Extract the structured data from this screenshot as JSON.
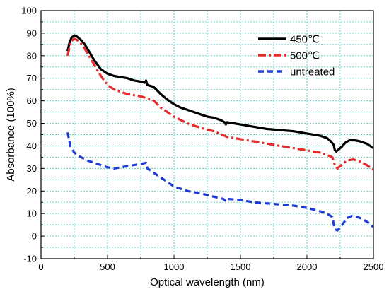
{
  "chart_data": {
    "type": "line",
    "title": "",
    "xlabel": "Optical wavelength (nm)",
    "ylabel": "Absorbance (100%)",
    "xlim": [
      0,
      2500
    ],
    "ylim": [
      -10,
      100
    ],
    "x_ticks": [
      0,
      500,
      1000,
      1500,
      2000,
      2500
    ],
    "y_ticks": [
      -10,
      0,
      10,
      20,
      30,
      40,
      50,
      60,
      70,
      80,
      90,
      100
    ],
    "x_minor_step": 250,
    "y_minor_step": 5,
    "grid": true,
    "legend_position": "top-right",
    "series": [
      {
        "name": "450℃",
        "color": "#000000",
        "line_style": "solid",
        "points": [
          [
            200,
            82
          ],
          [
            215,
            86
          ],
          [
            230,
            88
          ],
          [
            250,
            89
          ],
          [
            270,
            88.5
          ],
          [
            300,
            87
          ],
          [
            330,
            85
          ],
          [
            360,
            82
          ],
          [
            400,
            78
          ],
          [
            450,
            74
          ],
          [
            500,
            72
          ],
          [
            550,
            71
          ],
          [
            600,
            70.5
          ],
          [
            650,
            70
          ],
          [
            700,
            69
          ],
          [
            750,
            68.5
          ],
          [
            780,
            68
          ],
          [
            790,
            69
          ],
          [
            800,
            67
          ],
          [
            830,
            66.5
          ],
          [
            850,
            66
          ],
          [
            900,
            63
          ],
          [
            950,
            60.5
          ],
          [
            1000,
            58.5
          ],
          [
            1050,
            57
          ],
          [
            1100,
            56
          ],
          [
            1150,
            55
          ],
          [
            1200,
            54
          ],
          [
            1250,
            53
          ],
          [
            1300,
            52.5
          ],
          [
            1350,
            51.5
          ],
          [
            1380,
            50.5
          ],
          [
            1390,
            49.5
          ],
          [
            1400,
            50.5
          ],
          [
            1450,
            50
          ],
          [
            1500,
            49.5
          ],
          [
            1600,
            48.5
          ],
          [
            1700,
            47.5
          ],
          [
            1800,
            47
          ],
          [
            1900,
            46.5
          ],
          [
            2000,
            45.5
          ],
          [
            2100,
            44.5
          ],
          [
            2150,
            43.5
          ],
          [
            2180,
            42
          ],
          [
            2200,
            40.5
          ],
          [
            2210,
            38
          ],
          [
            2220,
            37.5
          ],
          [
            2230,
            38
          ],
          [
            2260,
            39.5
          ],
          [
            2290,
            41.5
          ],
          [
            2320,
            42.5
          ],
          [
            2360,
            42.5
          ],
          [
            2400,
            42
          ],
          [
            2450,
            41
          ],
          [
            2500,
            39
          ]
        ]
      },
      {
        "name": "500℃",
        "color": "#e52b2b",
        "line_style": "dashdot",
        "points": [
          [
            200,
            80
          ],
          [
            215,
            84
          ],
          [
            230,
            86.5
          ],
          [
            250,
            87.5
          ],
          [
            270,
            87
          ],
          [
            300,
            85.5
          ],
          [
            330,
            83
          ],
          [
            360,
            80
          ],
          [
            400,
            76
          ],
          [
            450,
            71
          ],
          [
            500,
            67
          ],
          [
            550,
            65
          ],
          [
            600,
            64
          ],
          [
            650,
            63
          ],
          [
            700,
            62.5
          ],
          [
            750,
            62
          ],
          [
            800,
            61
          ],
          [
            850,
            60
          ],
          [
            900,
            57
          ],
          [
            950,
            55
          ],
          [
            1000,
            53
          ],
          [
            1050,
            51.5
          ],
          [
            1100,
            50
          ],
          [
            1150,
            49
          ],
          [
            1200,
            48
          ],
          [
            1300,
            46.5
          ],
          [
            1400,
            44
          ],
          [
            1500,
            43
          ],
          [
            1600,
            42
          ],
          [
            1700,
            41
          ],
          [
            1800,
            40
          ],
          [
            1900,
            39
          ],
          [
            2000,
            38
          ],
          [
            2100,
            37
          ],
          [
            2150,
            36
          ],
          [
            2190,
            35
          ],
          [
            2210,
            31.5
          ],
          [
            2230,
            30
          ],
          [
            2260,
            31.5
          ],
          [
            2300,
            33.5
          ],
          [
            2350,
            34
          ],
          [
            2400,
            33
          ],
          [
            2450,
            31.5
          ],
          [
            2500,
            29.5
          ]
        ]
      },
      {
        "name": "untreated",
        "color": "#1f3bd6",
        "line_style": "dashed",
        "points": [
          [
            200,
            46
          ],
          [
            220,
            40
          ],
          [
            250,
            37
          ],
          [
            300,
            35
          ],
          [
            350,
            33.5
          ],
          [
            400,
            32.5
          ],
          [
            450,
            31.5
          ],
          [
            500,
            30.5
          ],
          [
            550,
            30
          ],
          [
            600,
            30.5
          ],
          [
            650,
            31
          ],
          [
            700,
            31.5
          ],
          [
            750,
            32
          ],
          [
            790,
            32.5
          ],
          [
            800,
            30
          ],
          [
            850,
            28
          ],
          [
            900,
            26
          ],
          [
            1000,
            22
          ],
          [
            1100,
            20
          ],
          [
            1200,
            19
          ],
          [
            1300,
            17.5
          ],
          [
            1370,
            16.5
          ],
          [
            1390,
            15.5
          ],
          [
            1400,
            16.5
          ],
          [
            1500,
            16
          ],
          [
            1600,
            15
          ],
          [
            1700,
            14.5
          ],
          [
            1800,
            14
          ],
          [
            1900,
            13.5
          ],
          [
            2000,
            12.5
          ],
          [
            2100,
            11
          ],
          [
            2150,
            10
          ],
          [
            2190,
            8.5
          ],
          [
            2210,
            3
          ],
          [
            2230,
            2.5
          ],
          [
            2260,
            4.5
          ],
          [
            2300,
            8
          ],
          [
            2340,
            9
          ],
          [
            2380,
            8.5
          ],
          [
            2420,
            7.5
          ],
          [
            2460,
            6
          ],
          [
            2500,
            4
          ]
        ]
      }
    ]
  }
}
